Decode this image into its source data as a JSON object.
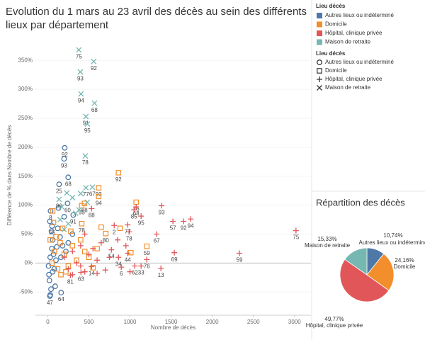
{
  "chart_data": [
    {
      "type": "scatter",
      "title": "Evolution du 1 mars au 23 avril des décès au sein des différents lieux par département",
      "x_label": "Nombre de décès",
      "y_label": "Différence de % dans Nombre de décès",
      "xlim": [
        -150,
        3200
      ],
      "xticks": [
        0,
        500,
        1000,
        1500,
        2000,
        2500,
        3000
      ],
      "ylim": [
        -90,
        393
      ],
      "yticks": [
        {
          "value": -50,
          "label": "-50%"
        },
        {
          "value": 0,
          "label": "0%"
        },
        {
          "value": 50,
          "label": "50%"
        },
        {
          "value": 100,
          "label": "100%"
        },
        {
          "value": 150,
          "label": "150%"
        },
        {
          "value": 200,
          "label": "200%"
        },
        {
          "value": 250,
          "label": "250%"
        },
        {
          "value": 300,
          "label": "300%"
        },
        {
          "value": 350,
          "label": "350%"
        }
      ],
      "legend_title": "Lieu décès",
      "shape_legend_title": "Lieu décès",
      "series": [
        {
          "name": "Autres lieux ou indéterminé",
          "color": "#4e79a7",
          "shape": "circle",
          "x": [
            206,
            198,
            249,
            138,
            241,
            34,
            52,
            310,
            26,
            163,
            10,
            20,
            30,
            40,
            50,
            60,
            80,
            100,
            120,
            150,
            180,
            200,
            220,
            250,
            30,
            15,
            70,
            90,
            130,
            160,
            300,
            60,
            110,
            45,
            25
          ],
          "values": [
            199,
            180,
            148,
            136,
            103,
            90,
            64,
            83,
            -57,
            -51,
            -5,
            -30,
            10,
            -45,
            25,
            40,
            -10,
            5,
            60,
            45,
            30,
            80,
            20,
            35,
            -55,
            -20,
            15,
            -40,
            95,
            10,
            50,
            -15,
            28,
            55,
            72
          ],
          "labels": [
            "92",
            "93",
            "68",
            "25",
            "60",
            "8",
            "65",
            "91",
            "47",
            "64",
            null,
            null,
            null,
            null,
            null,
            null,
            null,
            null,
            null,
            null,
            null,
            null,
            null,
            null,
            null,
            null,
            null,
            null,
            null,
            null,
            null,
            null,
            null,
            null,
            null
          ]
        },
        {
          "name": "Domicile",
          "color": "#f28e2b",
          "shape": "square",
          "x": [
            860,
            619,
            619,
            447,
            1075,
            413,
            413,
            705,
            1204,
            50,
            80,
            120,
            150,
            200,
            250,
            300,
            350,
            400,
            450,
            500,
            550,
            100,
            180,
            220,
            280,
            600,
            650,
            1010,
            880,
            30,
            70,
            60,
            160
          ],
          "values": [
            156,
            130,
            115,
            103,
            105,
            99,
            68,
            51,
            29,
            0,
            20,
            -10,
            35,
            15,
            -5,
            30,
            5,
            40,
            20,
            10,
            -8,
            45,
            60,
            -15,
            55,
            25,
            62,
            18,
            60,
            40,
            70,
            90,
            -20
          ],
          "labels": [
            "92",
            "93",
            "94",
            "68",
            "76",
            "95",
            "78",
            "80",
            "59",
            null,
            null,
            null,
            null,
            null,
            null,
            null,
            null,
            null,
            null,
            null,
            null,
            null,
            null,
            null,
            null,
            null,
            null,
            null,
            null,
            null,
            null,
            null,
            null
          ]
        },
        {
          "name": "Hôpital, clinique privée",
          "color": "#e15759",
          "shape": "plus",
          "x": [
            1384,
            1075,
            1049,
            1135,
            1522,
            1651,
            1737,
            3018,
            1324,
            989,
            972,
            808,
            533,
            774,
            972,
            860,
            1539,
            2330,
            1204,
            1058,
            1135,
            894,
            1376,
            533,
            404,
            275,
            200,
            250,
            300,
            350,
            400,
            450,
            500,
            600,
            650,
            700,
            750,
            400,
            550,
            300,
            450,
            850,
            950,
            1000,
            600
          ],
          "values": [
            99,
            97,
            92,
            81,
            72,
            72,
            76,
            56,
            50,
            54,
            66,
            65,
            94,
            23,
            17,
            10,
            18,
            17,
            6,
            -5,
            -5,
            -7,
            -9,
            -6,
            -16,
            -21,
            10,
            -10,
            20,
            0,
            30,
            -15,
            15,
            5,
            35,
            -12,
            10,
            -5,
            25,
            -20,
            50,
            40,
            30,
            -15,
            -18
          ],
          "labels": [
            "93",
            "68",
            "85",
            "95",
            "57",
            "92",
            "94",
            "75",
            "67",
            "78",
            "77",
            "2",
            "88",
            "54",
            "44",
            "34",
            "69",
            "59",
            "76",
            "62",
            "33",
            "6",
            "13",
            "14",
            "63",
            "81",
            null,
            null,
            null,
            null,
            null,
            null,
            null,
            null,
            null,
            null,
            null,
            null,
            null,
            null,
            null,
            null,
            null,
            null,
            null
          ]
        },
        {
          "name": "Maison de retraite",
          "color": "#76b7b2",
          "shape": "cross",
          "x": [
            378,
            559,
            396,
            404,
            568,
            464,
            481,
            456,
            464,
            542,
            138,
            232,
            300,
            380,
            170,
            340,
            480,
            150,
            250,
            400,
            200
          ],
          "values": [
            368,
            348,
            330,
            292,
            276,
            253,
            240,
            185,
            130,
            131,
            110,
            121,
            113,
            92,
            97,
            86,
            105,
            75,
            68,
            120,
            58
          ],
          "labels": [
            "75",
            "92",
            "93",
            "94",
            "68",
            "91",
            "95",
            "78",
            "77",
            "67",
            "90",
            null,
            null,
            null,
            null,
            null,
            null,
            null,
            null,
            null,
            null
          ]
        }
      ]
    },
    {
      "type": "pie",
      "title": "Répartition des décès",
      "categories": [
        "Autres lieux ou indéterminé",
        "Domicile",
        "Hôpital, clinique privée",
        "Maison de retraite"
      ],
      "values": [
        10.74,
        24.16,
        49.77,
        15.33
      ],
      "value_labels": [
        "10,74%",
        "24,16%",
        "49,77%",
        "15,33%"
      ],
      "colors": [
        "#4e79a7",
        "#f28e2b",
        "#e15759",
        "#76b7b2"
      ]
    }
  ]
}
